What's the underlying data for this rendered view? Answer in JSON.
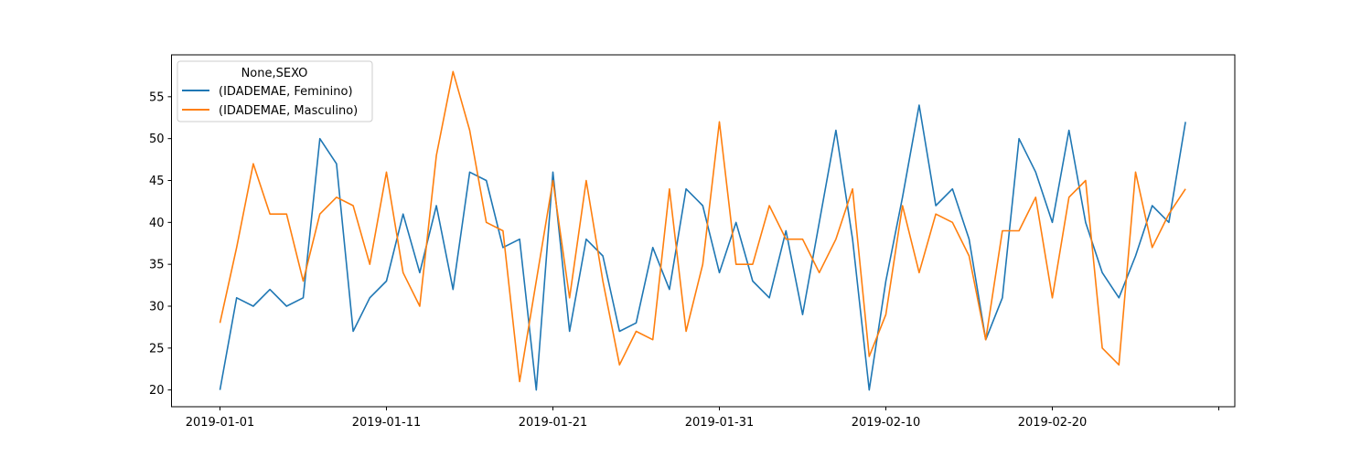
{
  "chart_data": {
    "type": "line",
    "x_start": "2019-01-01",
    "x": [
      "2019-01-01",
      "2019-01-02",
      "2019-01-03",
      "2019-01-04",
      "2019-01-05",
      "2019-01-06",
      "2019-01-07",
      "2019-01-08",
      "2019-01-09",
      "2019-01-10",
      "2019-01-11",
      "2019-01-12",
      "2019-01-13",
      "2019-01-14",
      "2019-01-15",
      "2019-01-16",
      "2019-01-17",
      "2019-01-18",
      "2019-01-19",
      "2019-01-20",
      "2019-01-21",
      "2019-01-22",
      "2019-01-23",
      "2019-01-24",
      "2019-01-25",
      "2019-01-26",
      "2019-01-27",
      "2019-01-28",
      "2019-01-29",
      "2019-01-30",
      "2019-01-31",
      "2019-02-01",
      "2019-02-02",
      "2019-02-03",
      "2019-02-04",
      "2019-02-05",
      "2019-02-06",
      "2019-02-07",
      "2019-02-08",
      "2019-02-09",
      "2019-02-10",
      "2019-02-11",
      "2019-02-12",
      "2019-02-13",
      "2019-02-14",
      "2019-02-15",
      "2019-02-16",
      "2019-02-17",
      "2019-02-18",
      "2019-02-19",
      "2019-02-20",
      "2019-02-21",
      "2019-02-22",
      "2019-02-23",
      "2019-02-24",
      "2019-02-25",
      "2019-02-26",
      "2019-02-27",
      "2019-02-28"
    ],
    "series": [
      {
        "name": "(IDADEMAE, Feminino)",
        "color": "#1f77b4",
        "values": [
          20,
          31,
          30,
          32,
          30,
          31,
          50,
          47,
          27,
          31,
          33,
          41,
          34,
          42,
          32,
          46,
          45,
          37,
          38,
          20,
          46,
          27,
          38,
          36,
          27,
          28,
          37,
          32,
          44,
          42,
          34,
          40,
          33,
          31,
          39,
          29,
          40,
          51,
          38,
          20,
          33,
          43,
          54,
          42,
          44,
          38,
          26,
          31,
          50,
          46,
          40,
          51,
          40,
          34,
          31,
          36,
          42,
          40,
          52
        ]
      },
      {
        "name": "(IDADEMAE, Masculino)",
        "color": "#ff7f0e",
        "values": [
          28,
          37,
          47,
          41,
          41,
          33,
          41,
          43,
          42,
          35,
          46,
          34,
          30,
          48,
          58,
          51,
          40,
          39,
          21,
          33,
          45,
          31,
          45,
          33,
          23,
          27,
          26,
          44,
          27,
          35,
          52,
          35,
          35,
          42,
          38,
          38,
          34,
          38,
          44,
          24,
          29,
          42,
          34,
          41,
          40,
          36,
          26,
          39,
          39,
          43,
          31,
          43,
          45,
          25,
          23,
          46,
          37,
          41,
          44
        ]
      }
    ],
    "x_ticks": [
      "2019-01-01",
      "2019-01-11",
      "2019-01-21",
      "2019-01-31",
      "2019-02-10",
      "2019-02-20"
    ],
    "y_ticks": [
      20,
      25,
      30,
      35,
      40,
      45,
      50,
      55
    ],
    "ylim": [
      18,
      60
    ],
    "legend_title": "None,SEXO",
    "legend_position": "upper-left",
    "grid": false
  }
}
